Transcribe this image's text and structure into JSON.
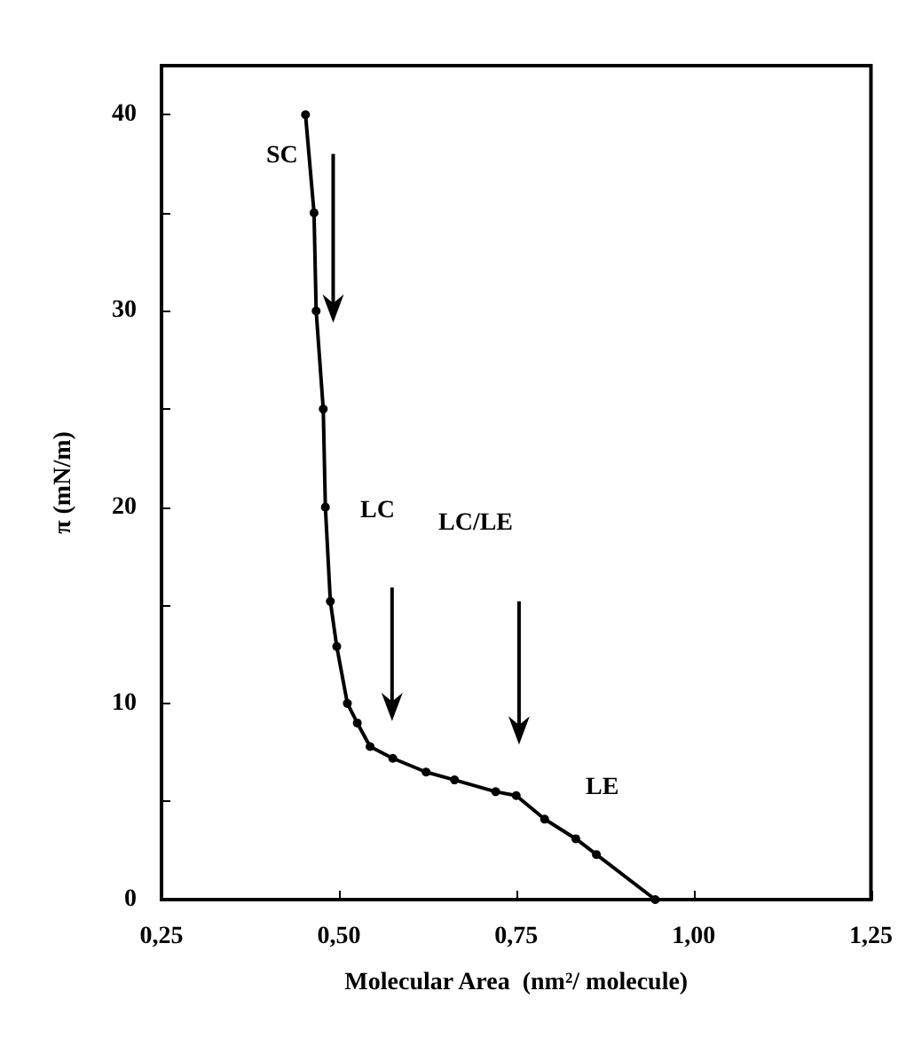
{
  "chart_data": {
    "type": "line",
    "xlabel": "Molecular Area  (nm²/ molecule)",
    "ylabel": "π (mN/m)",
    "x": [
      0.453,
      0.465,
      0.468,
      0.478,
      0.481,
      0.488,
      0.497,
      0.512,
      0.526,
      0.544,
      0.576,
      0.623,
      0.663,
      0.721,
      0.75,
      0.79,
      0.834,
      0.863,
      0.946
    ],
    "series": [
      {
        "color": "#000000",
        "values": [
          40,
          35,
          30,
          25,
          20,
          15.2,
          12.9,
          10,
          9,
          7.8,
          7.2,
          6.5,
          6.1,
          5.5,
          5.3,
          4.1,
          3.1,
          2.3,
          0
        ]
      }
    ],
    "xlim": [
      0.25,
      1.25
    ],
    "ylim": [
      0,
      42.5
    ],
    "xticks": [
      {
        "value": 0.25,
        "label": "0,25"
      },
      {
        "value": 0.5,
        "label": "0,50"
      },
      {
        "value": 0.75,
        "label": "0,75"
      },
      {
        "value": 1,
        "label": "1,00"
      },
      {
        "value": 1.25,
        "label": "1,25"
      }
    ],
    "yticks": [
      0,
      {
        "value": 5,
        "label": null
      },
      10,
      {
        "value": 15,
        "label": null
      },
      20,
      {
        "value": 25,
        "label": null
      },
      30,
      {
        "value": 35,
        "label": null
      },
      40
    ],
    "annotations": [
      "SC",
      "LC",
      "LC/LE",
      "LE"
    ],
    "marker": "circle",
    "line_style": "solid",
    "grid": false
  }
}
